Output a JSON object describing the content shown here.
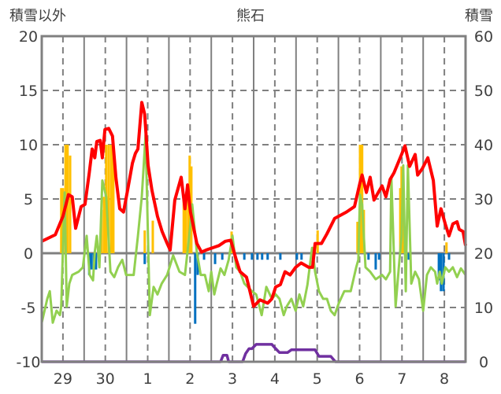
{
  "chart_data": {
    "type": "line",
    "title": "熊石",
    "ylabel_left": "積雪以外",
    "ylabel_right": "積雪",
    "xlim": [
      0,
      10
    ],
    "ylim_left": [
      -10,
      20
    ],
    "ylim_right": [
      0,
      60
    ],
    "yticks_left": [
      "20",
      "15",
      "10",
      "5",
      "0",
      "-5",
      "-10"
    ],
    "yticks_left_values": [
      20,
      15,
      10,
      5,
      0,
      -5,
      -10
    ],
    "yticks_right": [
      "60",
      "50",
      "40",
      "30",
      "20",
      "10",
      "0"
    ],
    "yticks_right_values": [
      60,
      50,
      40,
      30,
      20,
      10,
      0
    ],
    "xticks": [
      "29",
      "30",
      "1",
      "2",
      "3",
      "4",
      "5",
      "6",
      "7",
      "8"
    ],
    "xticks_values": [
      0.5,
      1.5,
      2.5,
      3.5,
      4.5,
      5.5,
      6.5,
      7.5,
      8.5,
      9.5
    ],
    "grid": true,
    "colors": {
      "red": "#ff0000",
      "green": "#92d050",
      "purple": "#7030a0",
      "orange": "#ffc000",
      "blue": "#0070c0",
      "grid": "#808080"
    },
    "series": [
      {
        "name": "red",
        "axis": "left",
        "points": [
          [
            0,
            1.1
          ],
          [
            0.32,
            1.7
          ],
          [
            0.5,
            3.4
          ],
          [
            0.63,
            5.4
          ],
          [
            0.72,
            5.2
          ],
          [
            0.8,
            2.3
          ],
          [
            0.93,
            4.3
          ],
          [
            1.02,
            4.5
          ],
          [
            1.12,
            7.4
          ],
          [
            1.19,
            9.6
          ],
          [
            1.25,
            8.8
          ],
          [
            1.3,
            10.3
          ],
          [
            1.38,
            10.4
          ],
          [
            1.43,
            8.8
          ],
          [
            1.49,
            11.4
          ],
          [
            1.58,
            11.5
          ],
          [
            1.67,
            10.8
          ],
          [
            1.75,
            7.0
          ],
          [
            1.84,
            4.1
          ],
          [
            1.93,
            3.8
          ],
          [
            2.03,
            5.9
          ],
          [
            2.14,
            8.3
          ],
          [
            2.21,
            9.2
          ],
          [
            2.27,
            9.6
          ],
          [
            2.36,
            13.9
          ],
          [
            2.43,
            12.8
          ],
          [
            2.51,
            8.1
          ],
          [
            2.6,
            5.8
          ],
          [
            2.73,
            3.4
          ],
          [
            2.84,
            2.0
          ],
          [
            2.96,
            0.9
          ],
          [
            3.03,
            0.3
          ],
          [
            3.14,
            4.9
          ],
          [
            3.29,
            7.0
          ],
          [
            3.38,
            4.1
          ],
          [
            3.44,
            6.3
          ],
          [
            3.51,
            3.8
          ],
          [
            3.66,
            0.9
          ],
          [
            3.77,
            0.1
          ],
          [
            3.88,
            0.3
          ],
          [
            4.03,
            0.5
          ],
          [
            4.18,
            0.7
          ],
          [
            4.33,
            1.1
          ],
          [
            4.46,
            1.2
          ],
          [
            4.59,
            -0.6
          ],
          [
            4.68,
            -1.7
          ],
          [
            4.83,
            -2.2
          ],
          [
            5.0,
            -4.9
          ],
          [
            5.15,
            -4.3
          ],
          [
            5.33,
            -4.6
          ],
          [
            5.43,
            -4.2
          ],
          [
            5.52,
            -3.1
          ],
          [
            5.63,
            -2.9
          ],
          [
            5.74,
            -1.7
          ],
          [
            5.86,
            -2.0
          ],
          [
            5.99,
            -1.3
          ],
          [
            6.12,
            -0.9
          ],
          [
            6.3,
            -1.3
          ],
          [
            6.39,
            -1.3
          ],
          [
            6.45,
            0.9
          ],
          [
            6.6,
            0.9
          ],
          [
            6.73,
            1.8
          ],
          [
            6.91,
            3.2
          ],
          [
            7.19,
            3.8
          ],
          [
            7.38,
            4.3
          ],
          [
            7.51,
            6.5
          ],
          [
            7.56,
            7.2
          ],
          [
            7.66,
            5.6
          ],
          [
            7.75,
            7.0
          ],
          [
            7.84,
            4.9
          ],
          [
            7.94,
            5.6
          ],
          [
            8.03,
            6.2
          ],
          [
            8.12,
            5.2
          ],
          [
            8.22,
            6.8
          ],
          [
            8.31,
            7.4
          ],
          [
            8.49,
            9.1
          ],
          [
            8.57,
            9.9
          ],
          [
            8.68,
            8.0
          ],
          [
            8.81,
            9.1
          ],
          [
            8.87,
            7.2
          ],
          [
            8.98,
            7.8
          ],
          [
            9.11,
            8.8
          ],
          [
            9.24,
            6.7
          ],
          [
            9.33,
            2.5
          ],
          [
            9.42,
            4.1
          ],
          [
            9.52,
            2.7
          ],
          [
            9.61,
            1.6
          ],
          [
            9.7,
            2.7
          ],
          [
            9.8,
            2.9
          ],
          [
            9.85,
            2.2
          ],
          [
            9.94,
            2.0
          ],
          [
            10.0,
            0.7
          ]
        ]
      },
      {
        "name": "green",
        "axis": "left",
        "points": [
          [
            0,
            -6.4
          ],
          [
            0.13,
            -4.2
          ],
          [
            0.19,
            -3.5
          ],
          [
            0.26,
            -6.4
          ],
          [
            0.35,
            -5.3
          ],
          [
            0.43,
            -5.7
          ],
          [
            0.46,
            -4.9
          ],
          [
            0.54,
            5.6
          ],
          [
            0.59,
            -4.9
          ],
          [
            0.65,
            -2.8
          ],
          [
            0.72,
            -2.0
          ],
          [
            0.87,
            -1.7
          ],
          [
            0.97,
            -1.3
          ],
          [
            1.06,
            1.6
          ],
          [
            1.13,
            -2.0
          ],
          [
            1.21,
            -2.5
          ],
          [
            1.25,
            0.1
          ],
          [
            1.3,
            1.6
          ],
          [
            1.36,
            -1.3
          ],
          [
            1.43,
            6.7
          ],
          [
            1.52,
            5.2
          ],
          [
            1.62,
            -1.7
          ],
          [
            1.71,
            -2.2
          ],
          [
            1.8,
            -1.3
          ],
          [
            1.9,
            -0.6
          ],
          [
            1.99,
            -2.0
          ],
          [
            2.17,
            -2.0
          ],
          [
            2.27,
            1.6
          ],
          [
            2.36,
            5.2
          ],
          [
            2.45,
            10.9
          ],
          [
            2.55,
            -5.7
          ],
          [
            2.64,
            -3.1
          ],
          [
            2.73,
            -3.8
          ],
          [
            2.83,
            -2.8
          ],
          [
            2.96,
            -2.0
          ],
          [
            3.1,
            -0.2
          ],
          [
            3.25,
            -1.7
          ],
          [
            3.38,
            -2.0
          ],
          [
            3.48,
            1.6
          ],
          [
            3.55,
            4.5
          ],
          [
            3.66,
            0.1
          ],
          [
            3.75,
            -2.0
          ],
          [
            3.85,
            -2.0
          ],
          [
            3.94,
            -3.5
          ],
          [
            4.0,
            -1.7
          ],
          [
            4.07,
            -3.8
          ],
          [
            4.13,
            -2.8
          ],
          [
            4.22,
            -1.4
          ],
          [
            4.31,
            -2.0
          ],
          [
            4.41,
            -0.6
          ],
          [
            4.5,
            1.6
          ],
          [
            4.59,
            -1.3
          ],
          [
            4.68,
            -1.7
          ],
          [
            4.78,
            -2.8
          ],
          [
            4.96,
            -3.5
          ],
          [
            5.06,
            -3.8
          ],
          [
            5.19,
            -5.7
          ],
          [
            5.3,
            -3.1
          ],
          [
            5.43,
            -4.2
          ],
          [
            5.52,
            -3.8
          ],
          [
            5.61,
            -4.2
          ],
          [
            5.71,
            -5.7
          ],
          [
            5.78,
            -4.9
          ],
          [
            5.89,
            -4.2
          ],
          [
            5.99,
            -5.3
          ],
          [
            6.08,
            -3.8
          ],
          [
            6.17,
            -4.9
          ],
          [
            6.27,
            -2.9
          ],
          [
            6.38,
            0.5
          ],
          [
            6.45,
            -1.7
          ],
          [
            6.54,
            -3.5
          ],
          [
            6.64,
            -4.2
          ],
          [
            6.73,
            -4.2
          ],
          [
            6.82,
            -5.3
          ],
          [
            6.91,
            -5.7
          ],
          [
            7.01,
            -4.6
          ],
          [
            7.14,
            -3.5
          ],
          [
            7.29,
            -3.5
          ],
          [
            7.42,
            -1.3
          ],
          [
            7.47,
            -0.6
          ],
          [
            7.51,
            5.4
          ],
          [
            7.56,
            4.5
          ],
          [
            7.64,
            -1.3
          ],
          [
            7.75,
            -1.7
          ],
          [
            7.88,
            -2.4
          ],
          [
            8.03,
            -2.0
          ],
          [
            8.12,
            -2.4
          ],
          [
            8.22,
            -1.7
          ],
          [
            8.25,
            7.0
          ],
          [
            8.35,
            -4.9
          ],
          [
            8.44,
            -0.6
          ],
          [
            8.49,
            1.6
          ],
          [
            8.53,
            8.1
          ],
          [
            8.59,
            -3.5
          ],
          [
            8.64,
            8.1
          ],
          [
            8.72,
            -2.8
          ],
          [
            8.81,
            -1.7
          ],
          [
            8.9,
            -2.4
          ],
          [
            9.0,
            -5.3
          ],
          [
            9.09,
            -2.0
          ],
          [
            9.18,
            -1.3
          ],
          [
            9.28,
            -1.7
          ],
          [
            9.33,
            -2.8
          ],
          [
            9.39,
            -1.7
          ],
          [
            9.44,
            -2.8
          ],
          [
            9.52,
            -1.3
          ],
          [
            9.61,
            -1.7
          ],
          [
            9.7,
            -1.3
          ],
          [
            9.8,
            -2.2
          ],
          [
            9.89,
            -1.4
          ],
          [
            10.0,
            -2.0
          ]
        ]
      },
      {
        "name": "purple",
        "axis": "right",
        "points": [
          [
            0,
            0
          ],
          [
            4.22,
            0
          ],
          [
            4.28,
            1.2
          ],
          [
            4.37,
            1.2
          ],
          [
            4.41,
            0
          ],
          [
            4.74,
            0
          ],
          [
            4.81,
            1.5
          ],
          [
            4.89,
            2.4
          ],
          [
            4.96,
            2.4
          ],
          [
            5.06,
            3.2
          ],
          [
            5.43,
            3.2
          ],
          [
            5.52,
            2.4
          ],
          [
            5.61,
            1.7
          ],
          [
            5.8,
            1.7
          ],
          [
            5.89,
            2.2
          ],
          [
            6.45,
            2.2
          ],
          [
            6.54,
            1
          ],
          [
            6.82,
            1
          ],
          [
            6.93,
            0
          ],
          [
            10,
            0
          ]
        ]
      }
    ],
    "bars_orange": [
      [
        0.46,
        6
      ],
      [
        0.5,
        6
      ],
      [
        0.56,
        10
      ],
      [
        0.61,
        10
      ],
      [
        0.67,
        9
      ],
      [
        1.41,
        4
      ],
      [
        1.47,
        5.2
      ],
      [
        1.52,
        10
      ],
      [
        1.58,
        10
      ],
      [
        1.64,
        10
      ],
      [
        1.69,
        10
      ],
      [
        2.43,
        2.1
      ],
      [
        2.62,
        3
      ],
      [
        3.35,
        5
      ],
      [
        3.4,
        5
      ],
      [
        3.46,
        5
      ],
      [
        3.49,
        9
      ],
      [
        3.53,
        8
      ],
      [
        4.48,
        2
      ],
      [
        6.51,
        2.1
      ],
      [
        7.45,
        2.9
      ],
      [
        7.51,
        10
      ],
      [
        7.56,
        10
      ],
      [
        7.6,
        4
      ],
      [
        8.46,
        6
      ],
      [
        8.49,
        8
      ],
      [
        8.53,
        6
      ],
      [
        9.55,
        1
      ]
    ],
    "bars_blue": [
      [
        1.12,
        -2
      ],
      [
        1.17,
        -1.5
      ],
      [
        1.23,
        -1.5
      ],
      [
        1.28,
        -1.5
      ],
      [
        2.43,
        -1
      ],
      [
        3.62,
        -6.5
      ],
      [
        3.68,
        -2
      ],
      [
        3.83,
        -0.6
      ],
      [
        4.09,
        -1
      ],
      [
        4.26,
        -0.6
      ],
      [
        4.78,
        -0.6
      ],
      [
        4.96,
        -0.6
      ],
      [
        5.09,
        -0.6
      ],
      [
        5.2,
        -0.6
      ],
      [
        5.33,
        -0.6
      ],
      [
        5.63,
        -0.6
      ],
      [
        6.02,
        -0.6
      ],
      [
        6.13,
        -0.6
      ],
      [
        7.71,
        -0.6
      ],
      [
        7.88,
        -1.5
      ],
      [
        7.96,
        -0.6
      ],
      [
        8.59,
        -0.6
      ],
      [
        8.66,
        -0.6
      ],
      [
        9.37,
        -2.5
      ],
      [
        9.42,
        -3.5
      ],
      [
        9.48,
        -3.5
      ],
      [
        9.61,
        -0.6
      ]
    ]
  }
}
